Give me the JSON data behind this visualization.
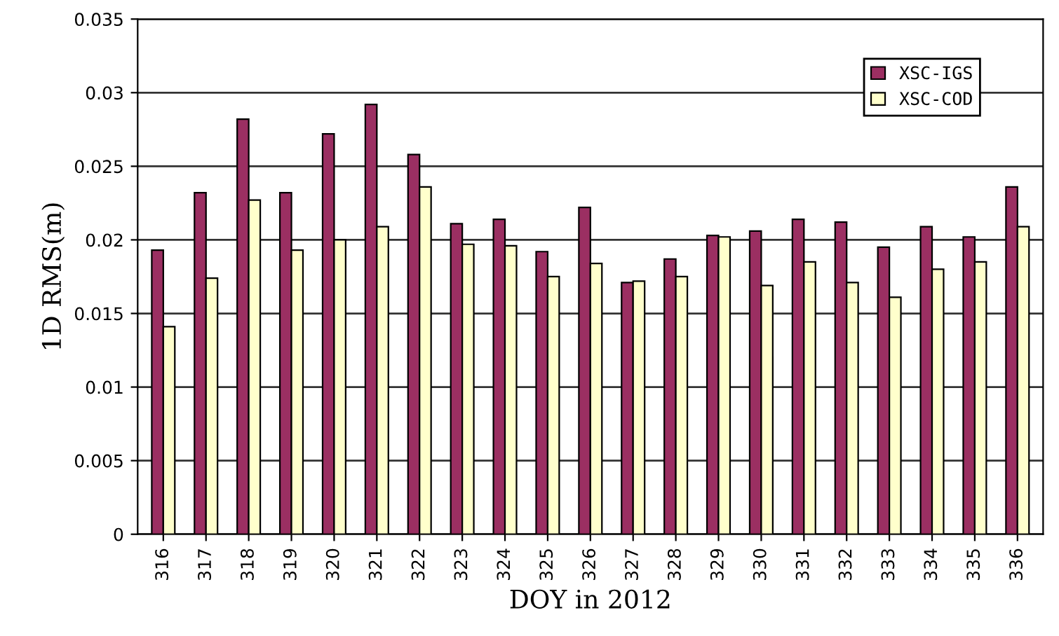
{
  "chart_data": {
    "type": "bar",
    "xlabel": "DOY in 2012",
    "ylabel": "1D RMS(m)",
    "categories": [
      "316",
      "317",
      "318",
      "319",
      "320",
      "321",
      "322",
      "323",
      "324",
      "325",
      "326",
      "327",
      "328",
      "329",
      "330",
      "331",
      "332",
      "333",
      "334",
      "335",
      "336"
    ],
    "series": [
      {
        "name": "XSC-IGS",
        "color": "#9b2f62",
        "values": [
          0.0193,
          0.0232,
          0.0282,
          0.0232,
          0.0272,
          0.0292,
          0.0258,
          0.0211,
          0.0214,
          0.0192,
          0.0222,
          0.0171,
          0.0187,
          0.0203,
          0.0206,
          0.0214,
          0.0212,
          0.0195,
          0.0209,
          0.0202,
          0.0236
        ]
      },
      {
        "name": "XSC-COD",
        "color": "#ffffcc",
        "values": [
          0.0141,
          0.0174,
          0.0227,
          0.0193,
          0.02,
          0.0209,
          0.0236,
          0.0197,
          0.0196,
          0.0175,
          0.0184,
          0.0172,
          0.0175,
          0.0202,
          0.0169,
          0.0185,
          0.0171,
          0.0161,
          0.018,
          0.0185,
          0.0209
        ]
      }
    ],
    "ylim": [
      0,
      0.035
    ],
    "yticks": [
      0,
      0.005,
      0.01,
      0.015,
      0.02,
      0.025,
      0.03,
      0.035
    ],
    "grid": "y",
    "legend": "top right"
  }
}
